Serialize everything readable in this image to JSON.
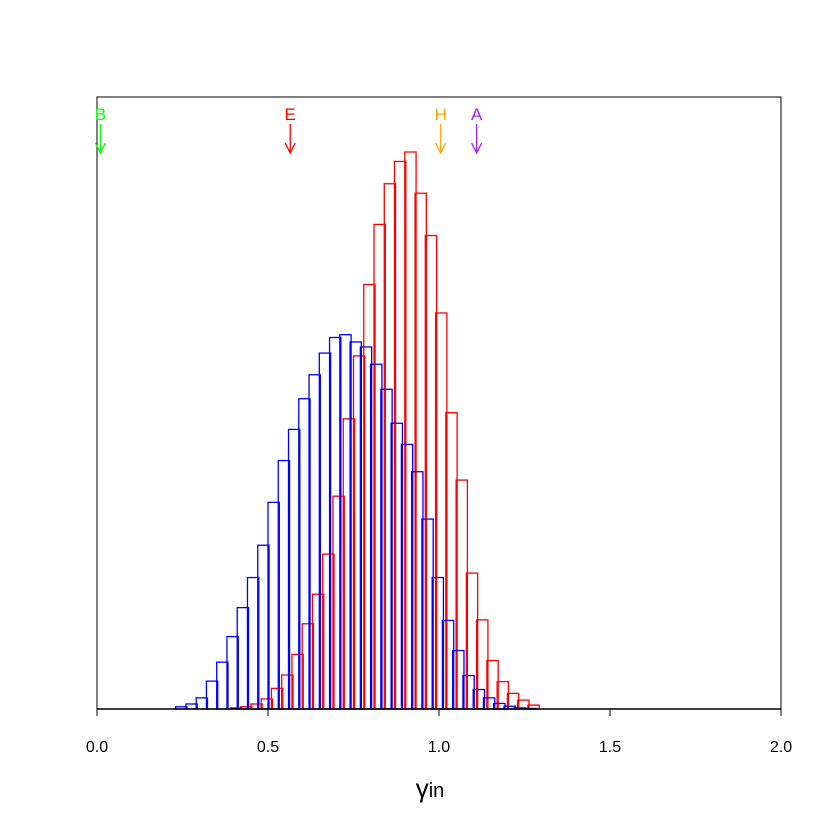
{
  "chart_data": {
    "type": "bar",
    "title": "",
    "xlabel_main": "γ",
    "xlabel_sub": "in",
    "ylabel": "",
    "xlim": [
      0.0,
      2.0
    ],
    "ylim": [
      0,
      1.0
    ],
    "x_ticks": [
      "0.0",
      "0.5",
      "1.0",
      "1.5",
      "2.0"
    ],
    "bin_width": 0.033,
    "series": [
      {
        "color": "#ff0000",
        "bin_starts": [
          0.39,
          0.42,
          0.45,
          0.48,
          0.51,
          0.54,
          0.57,
          0.6,
          0.63,
          0.66,
          0.69,
          0.72,
          0.75,
          0.78,
          0.81,
          0.84,
          0.87,
          0.9,
          0.93,
          0.96,
          0.99,
          1.02,
          1.05,
          1.08,
          1.11,
          1.14,
          1.17,
          1.2,
          1.23,
          1.26
        ],
        "values": [
          0.002,
          0.004,
          0.009,
          0.018,
          0.037,
          0.061,
          0.098,
          0.153,
          0.206,
          0.278,
          0.382,
          0.521,
          0.634,
          0.762,
          0.87,
          0.943,
          0.983,
          1.0,
          0.926,
          0.85,
          0.711,
          0.532,
          0.411,
          0.244,
          0.16,
          0.087,
          0.049,
          0.028,
          0.016,
          0.007
        ]
      },
      {
        "color": "#0000ff",
        "bin_starts": [
          0.23,
          0.26,
          0.29,
          0.32,
          0.35,
          0.38,
          0.41,
          0.44,
          0.47,
          0.5,
          0.53,
          0.56,
          0.59,
          0.62,
          0.65,
          0.68,
          0.71,
          0.74,
          0.77,
          0.8,
          0.83,
          0.86,
          0.89,
          0.92,
          0.95,
          0.98,
          1.01,
          1.04,
          1.07,
          1.1,
          1.13,
          1.16,
          1.19,
          1.22,
          1.25
        ],
        "values": [
          0.004,
          0.009,
          0.02,
          0.05,
          0.084,
          0.13,
          0.182,
          0.236,
          0.294,
          0.371,
          0.446,
          0.502,
          0.557,
          0.6,
          0.639,
          0.667,
          0.672,
          0.659,
          0.65,
          0.619,
          0.574,
          0.513,
          0.475,
          0.426,
          0.341,
          0.236,
          0.159,
          0.105,
          0.06,
          0.035,
          0.02,
          0.01,
          0.005,
          0.002,
          0.001
        ]
      }
    ],
    "markers": [
      {
        "label": "B",
        "x": 0.01,
        "color": "#00ff00"
      },
      {
        "label": "E",
        "x": 0.565,
        "color": "#ff0000"
      },
      {
        "label": "H",
        "x": 1.005,
        "color": "#ffa500"
      },
      {
        "label": "A",
        "x": 1.11,
        "color": "#a020f0"
      }
    ],
    "grid": false,
    "legend": "none"
  }
}
